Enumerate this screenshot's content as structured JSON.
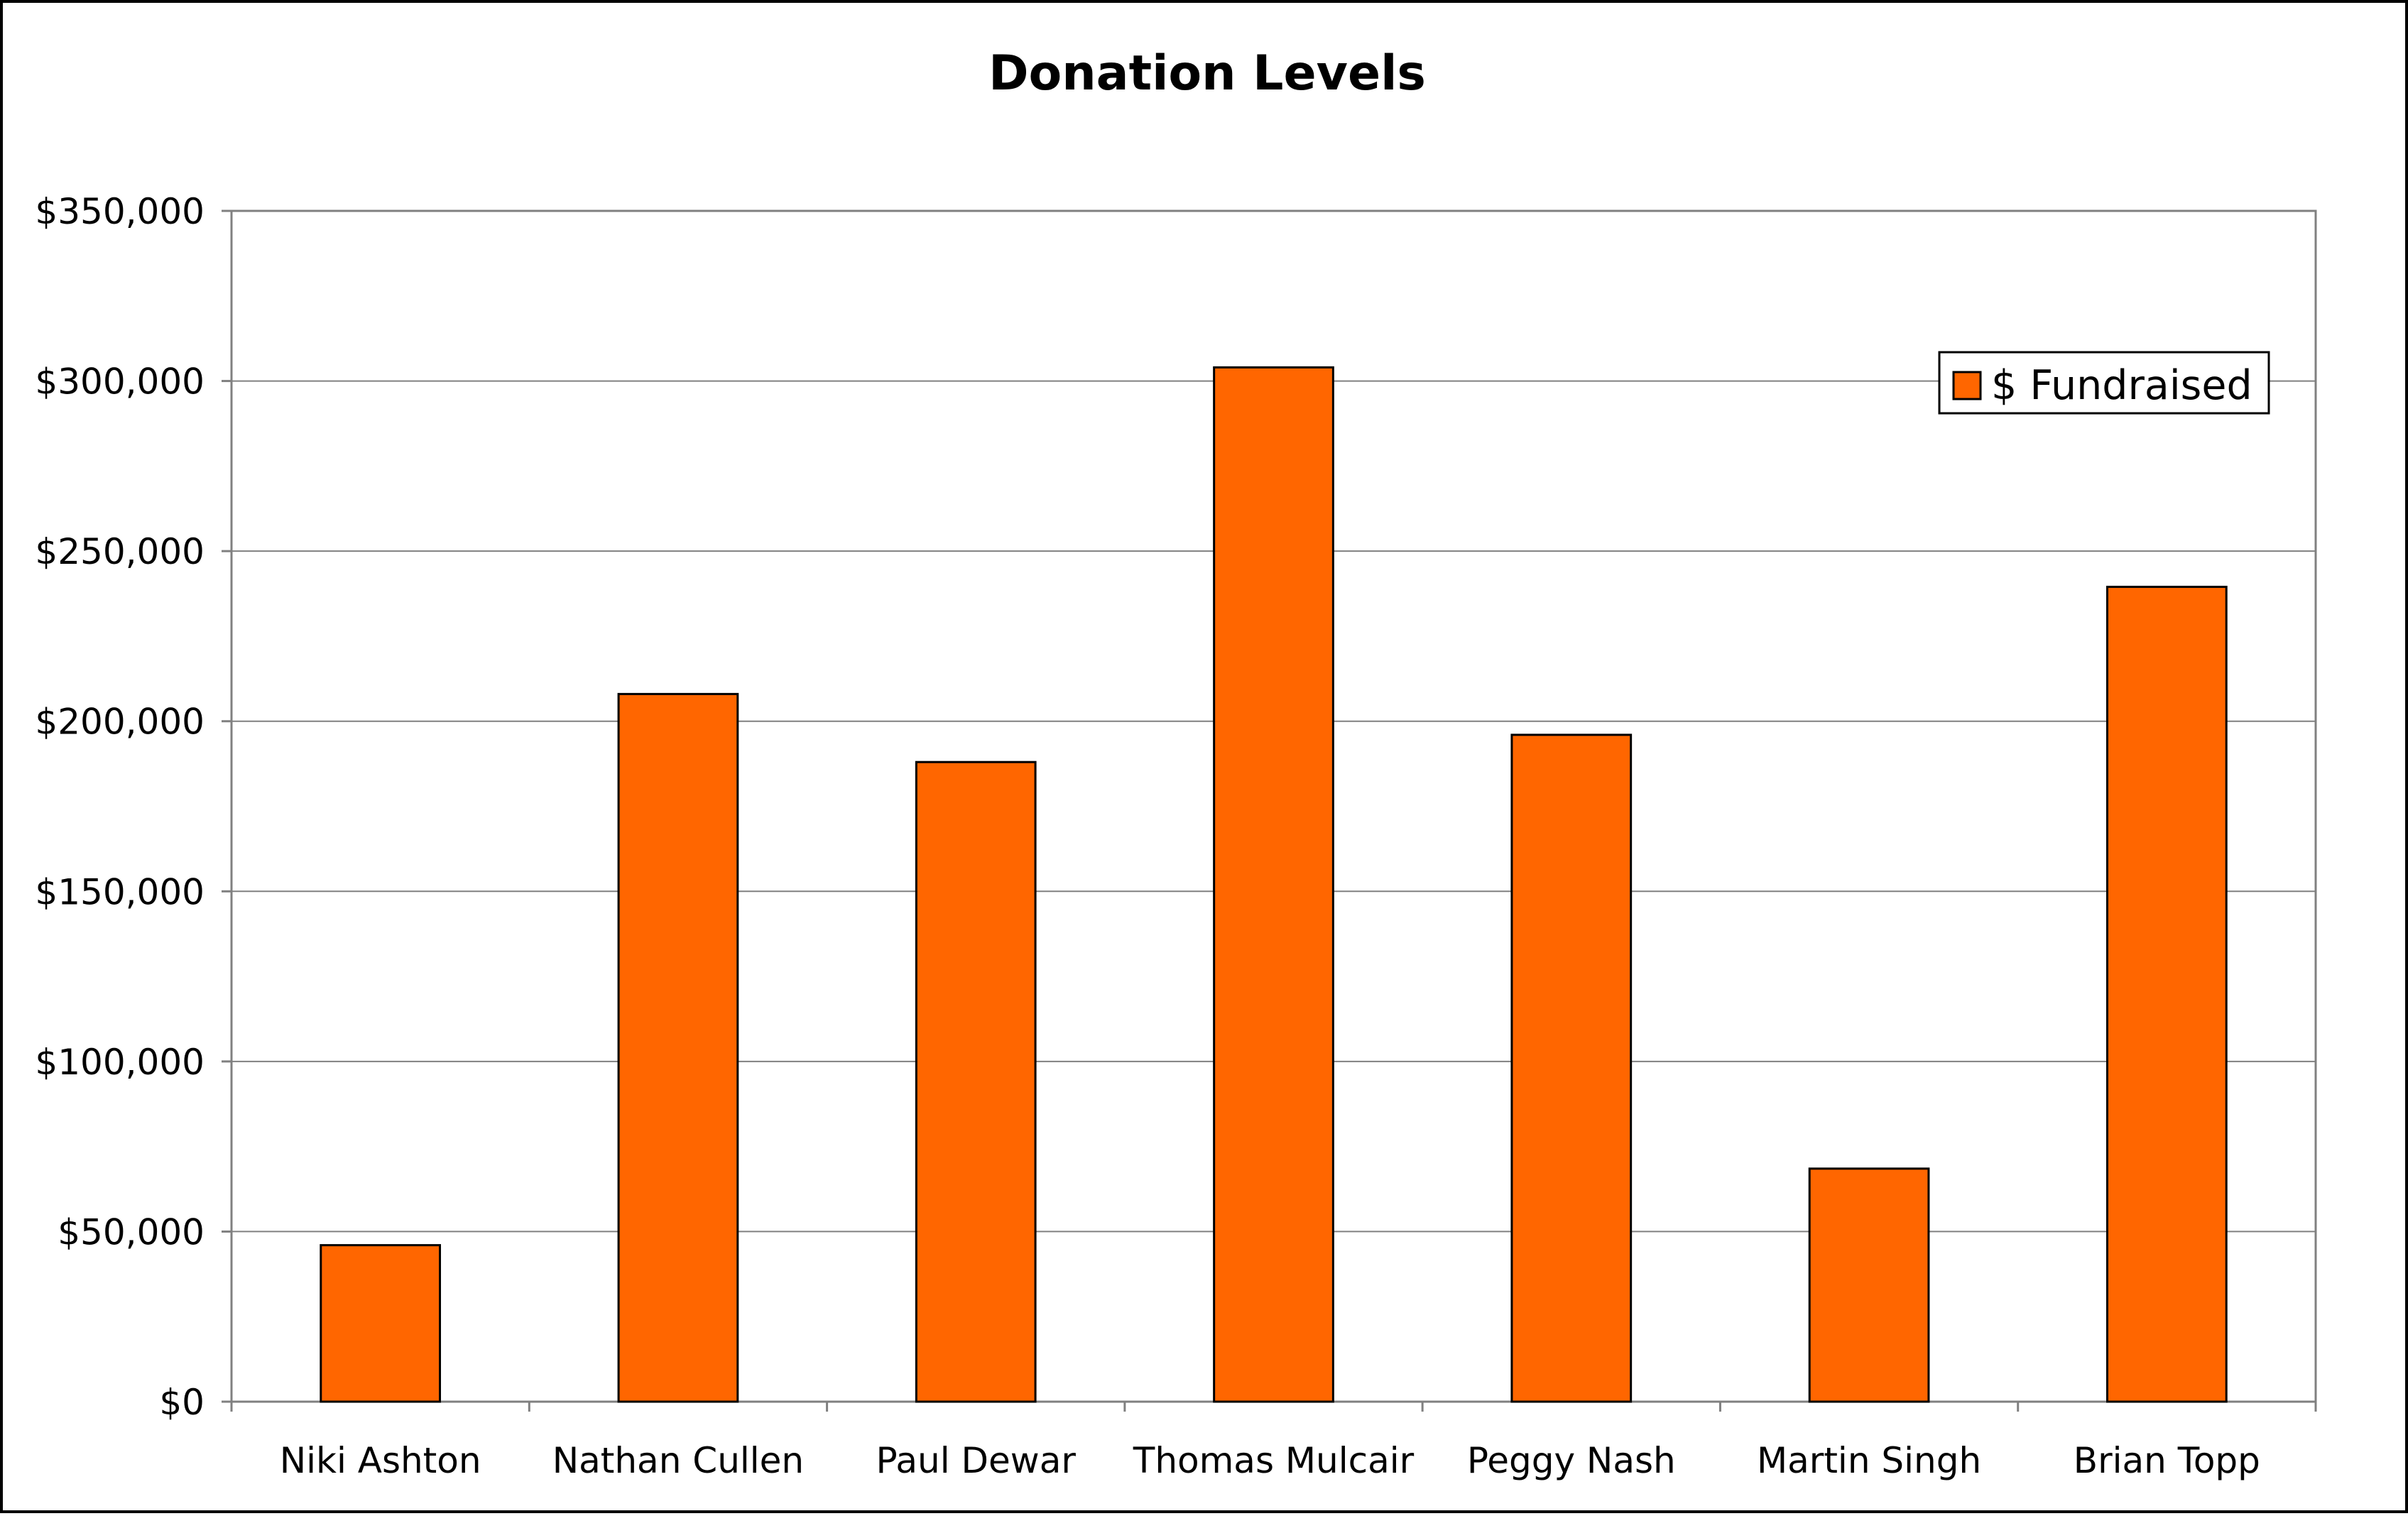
{
  "chart_data": {
    "type": "bar",
    "title": "Donation Levels",
    "xlabel": "",
    "ylabel": "",
    "categories": [
      "Niki Ashton",
      "Nathan Cullen",
      "Paul Dewar",
      "Thomas Mulcair",
      "Peggy Nash",
      "Martin Singh",
      "Brian Topp"
    ],
    "series": [
      {
        "name": "$ Fundraised",
        "values": [
          46000,
          208000,
          188000,
          304000,
          196000,
          68500,
          239500
        ],
        "color": "#FF6600"
      }
    ],
    "ylim": [
      0,
      350000
    ],
    "y_ticks": [
      0,
      50000,
      100000,
      150000,
      200000,
      250000,
      300000,
      350000
    ],
    "y_tick_labels": [
      "$0",
      "$50,000",
      "$100,000",
      "$150,000",
      "$200,000",
      "$250,000",
      "$300,000",
      "$350,000"
    ],
    "grid": true,
    "legend_position": "top-right"
  }
}
